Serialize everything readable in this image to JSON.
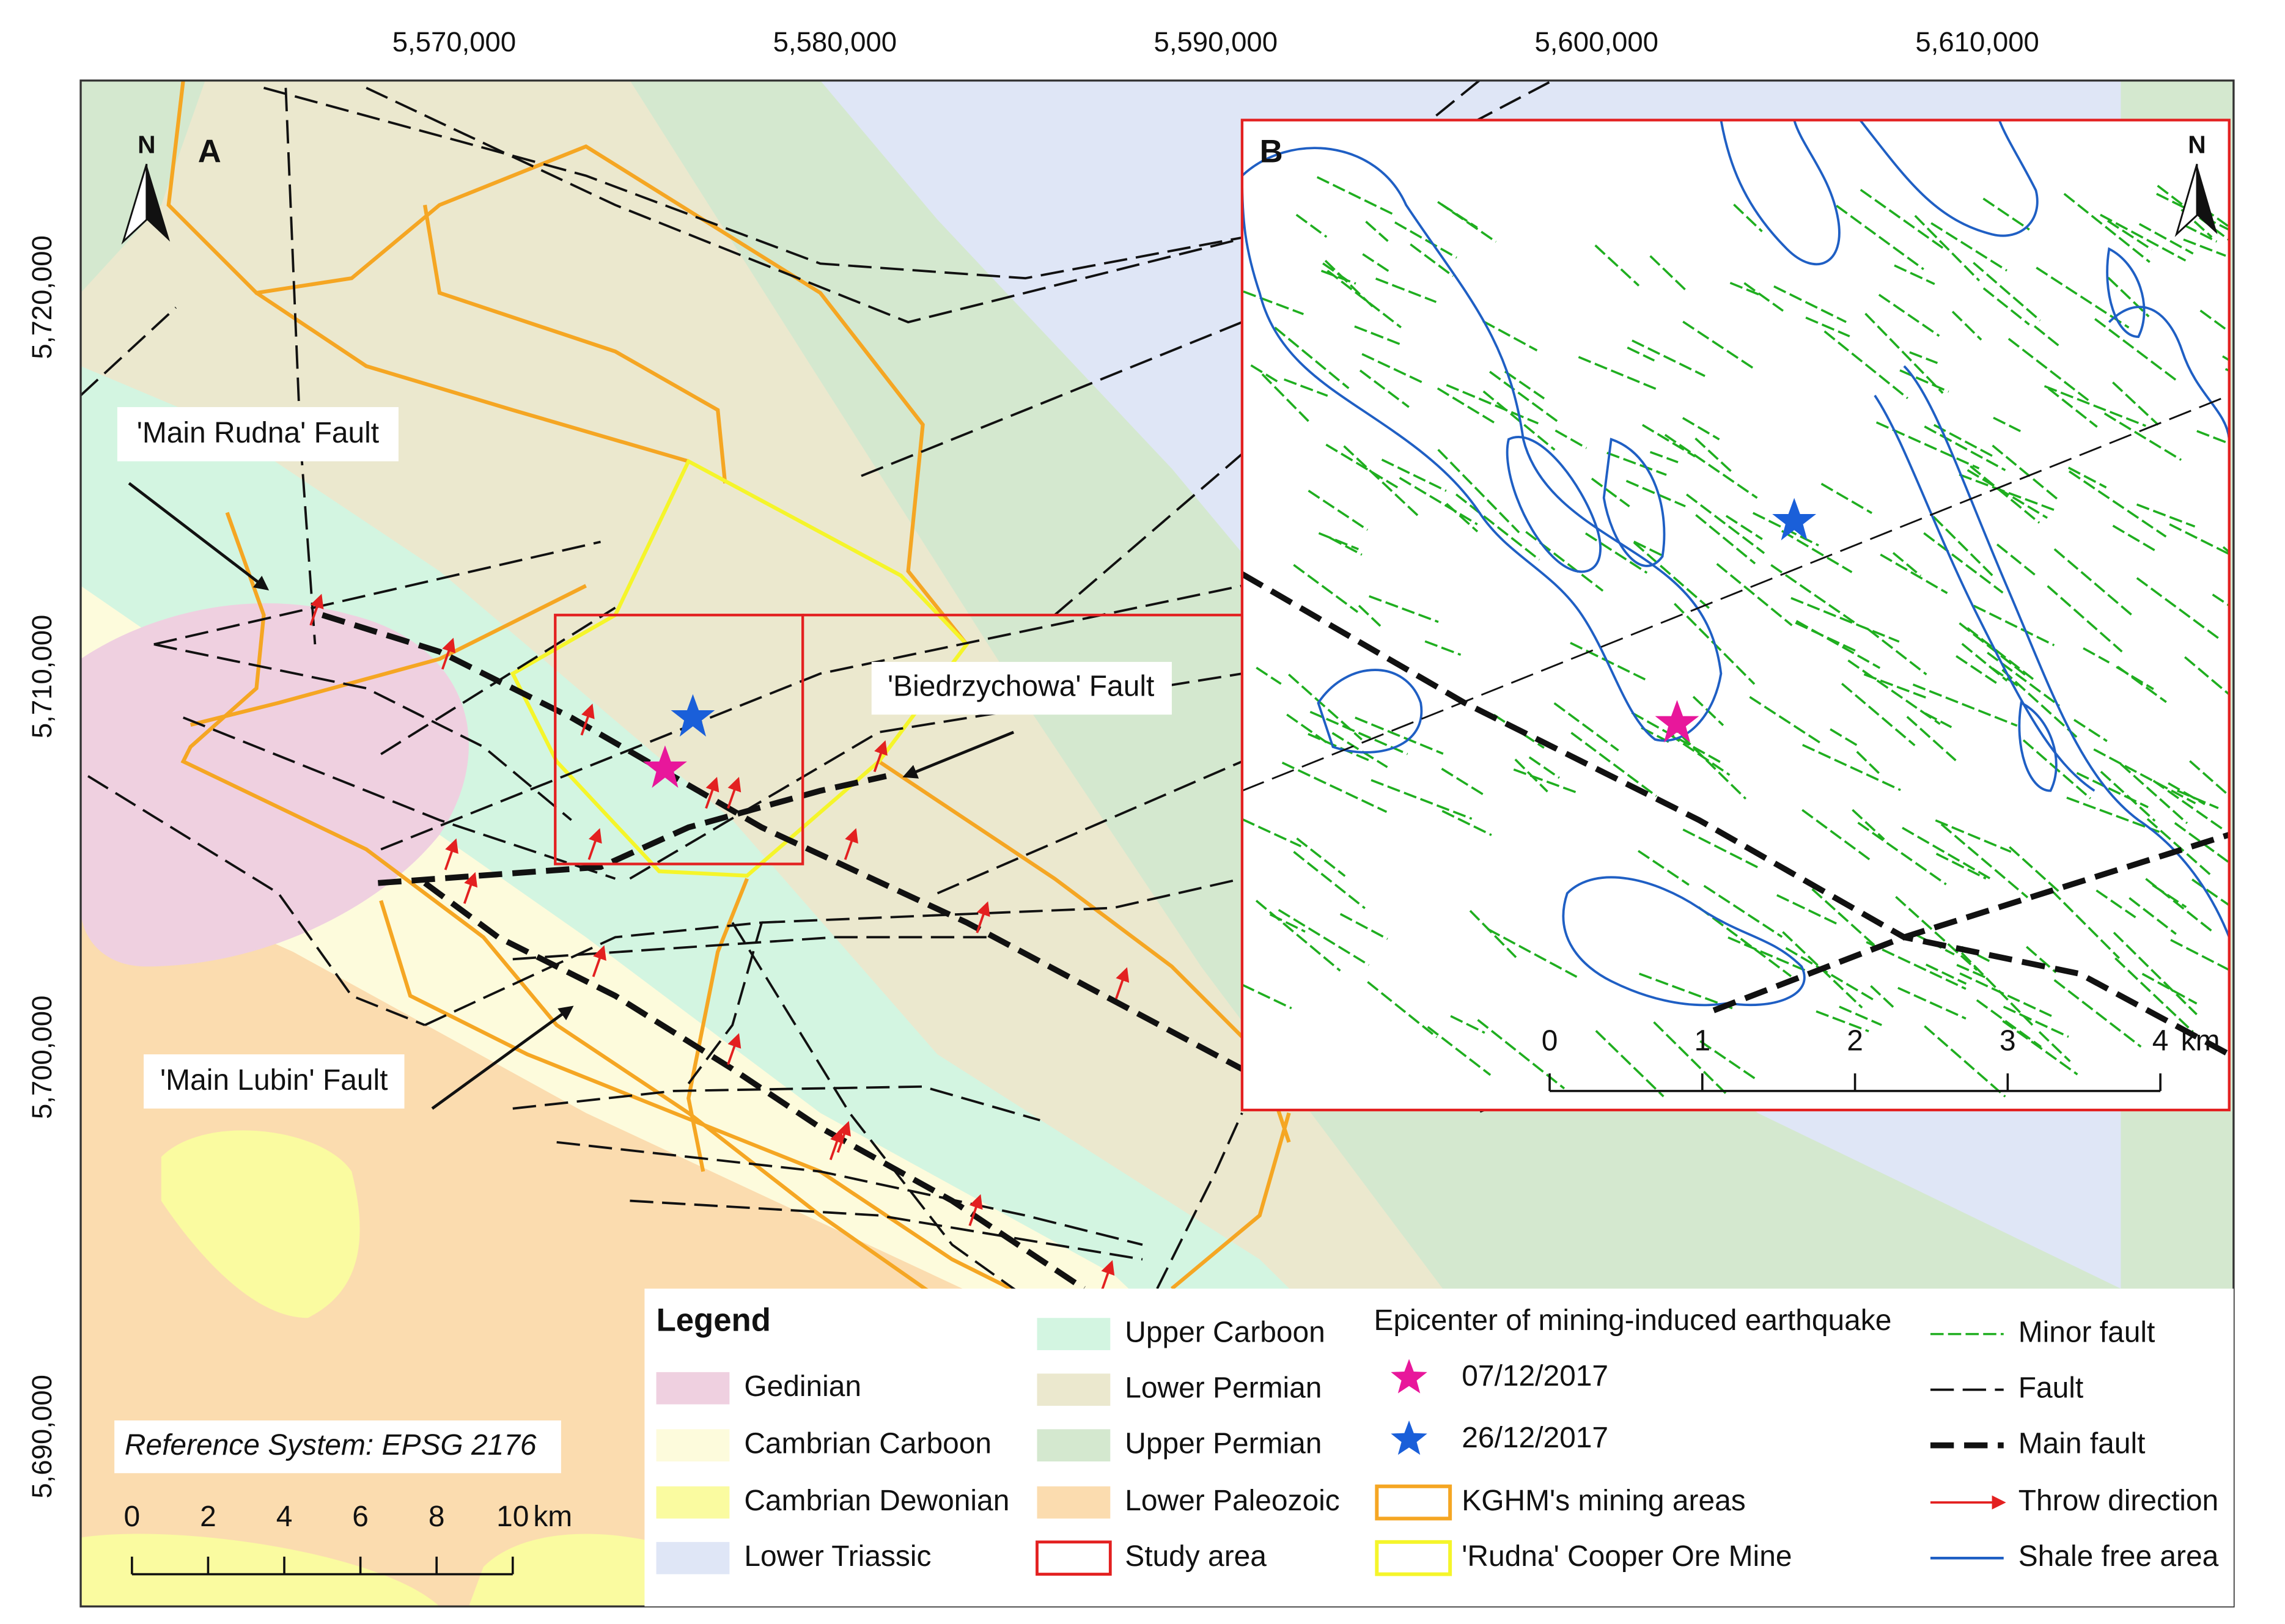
{
  "map": {
    "x_ticks": [
      "5,570,000",
      "5,580,000",
      "5,590,000",
      "5,600,000",
      "5,610,000"
    ],
    "y_ticks": [
      "5,720,000",
      "5,710,000",
      "5,700,000",
      "5,690,000"
    ],
    "panel_a_label": "A",
    "panel_b_label": "B",
    "north_a": "N",
    "north_b": "N",
    "fault_labels": [
      "'Main Rudna' Fault",
      "'Biedrzychowa' Fault",
      "'Main Lubin' Fault"
    ],
    "reference_system": "Reference System: EPSG 2176",
    "scale": {
      "ticks": [
        0,
        2,
        4,
        6,
        8,
        10
      ],
      "unit": "km"
    },
    "inset_scale": {
      "ticks": [
        0,
        1,
        2,
        3,
        4
      ],
      "unit": "km"
    }
  },
  "legend": {
    "title": "Legend",
    "units": [
      "Gedinian",
      "Cambrian Carboon",
      "Cambrian Dewonian",
      "Lower Triassic",
      "Upper Carboon",
      "Lower Permian",
      "Upper Permian",
      "Lower Paleozoic",
      "Study area"
    ],
    "epicenter_title": "Epicenter of mining-induced earthquake",
    "epicenters": [
      "07/12/2017",
      "26/12/2017"
    ],
    "areas": [
      "KGHM's mining areas",
      "'Rudna' Cooper Ore Mine"
    ],
    "lines": [
      "Minor fault",
      "Fault",
      "Main fault",
      "Throw direction",
      "Shale free area"
    ]
  }
}
